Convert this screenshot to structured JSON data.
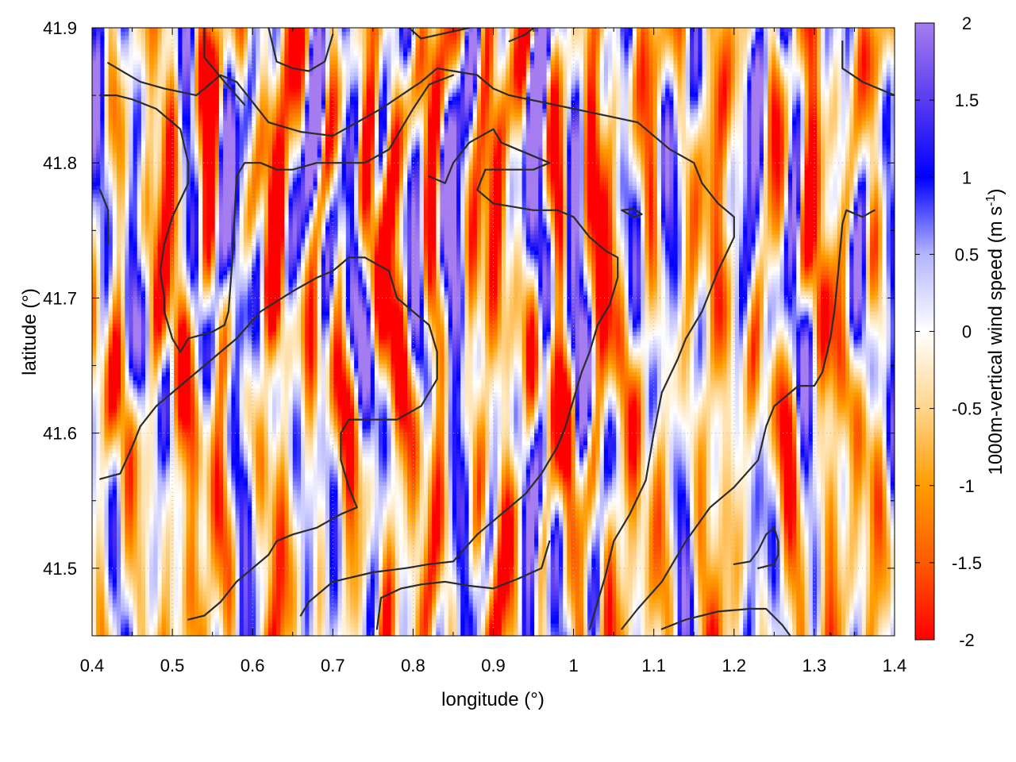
{
  "chart_data": {
    "type": "heatmap",
    "title": "",
    "xlabel": "longitude (°)",
    "ylabel": "latitude (°)",
    "colorbar_label": {
      "main": "1000m-vertical wind speed (m s",
      "sup": "-1",
      "close": ")"
    },
    "xlim": [
      0.4,
      1.4
    ],
    "ylim": [
      41.45,
      41.9
    ],
    "x_ticks": [
      0.4,
      0.5,
      0.6,
      0.7,
      0.8,
      0.9,
      1.0,
      1.1,
      1.2,
      1.3,
      1.4
    ],
    "x_tick_labels": [
      "0.4",
      "0.5",
      "0.6",
      "0.7",
      "0.8",
      "0.9",
      "1",
      "1.1",
      "1.2",
      "1.3",
      "1.4"
    ],
    "y_ticks": [
      41.5,
      41.6,
      41.7,
      41.8,
      41.9
    ],
    "y_tick_labels": [
      "41.5",
      "41.6",
      "41.7",
      "41.8",
      "41.9"
    ],
    "colorbar_range": [
      -2,
      2
    ],
    "colorbar_ticks": [
      2,
      1.5,
      1,
      0.5,
      0,
      -0.5,
      -1,
      -1.5,
      -2
    ],
    "colorbar_tick_labels": [
      "2",
      "1.5",
      "1",
      "0.5",
      "0",
      "-0.5",
      "-1",
      "-1.5",
      "-2"
    ],
    "colormap": [
      {
        "value": -2.0,
        "color": "#ff0000"
      },
      {
        "value": -1.5,
        "color": "#ff5a00"
      },
      {
        "value": -1.0,
        "color": "#ff9c00"
      },
      {
        "value": -0.5,
        "color": "#ffd58c"
      },
      {
        "value": 0.0,
        "color": "#ffffff"
      },
      {
        "value": 0.5,
        "color": "#b4b4ff"
      },
      {
        "value": 1.0,
        "color": "#0000ff"
      },
      {
        "value": 1.5,
        "color": "#5a3cf0"
      },
      {
        "value": 2.0,
        "color": "#a57df0"
      }
    ],
    "grid": true,
    "contour_color": "#2b2b2b",
    "contours": [
      [
        [
          0.42,
          41.874
        ],
        [
          0.46,
          41.86
        ],
        [
          0.49,
          41.855
        ],
        [
          0.53,
          41.85
        ],
        [
          0.56,
          41.865
        ],
        [
          0.58,
          41.86
        ],
        [
          0.6,
          41.845
        ],
        [
          0.62,
          41.83
        ],
        [
          0.66,
          41.823
        ],
        [
          0.7,
          41.82
        ],
        [
          0.73,
          41.83
        ],
        [
          0.76,
          41.84
        ],
        [
          0.78,
          41.848
        ],
        [
          0.81,
          41.86
        ],
        [
          0.83,
          41.87
        ],
        [
          0.85,
          41.868
        ],
        [
          0.88,
          41.865
        ],
        [
          0.9,
          41.855
        ],
        [
          0.92,
          41.85
        ],
        [
          0.96,
          41.845
        ],
        [
          1.0,
          41.84
        ],
        [
          1.04,
          41.835
        ],
        [
          1.08,
          41.83
        ],
        [
          1.12,
          41.81
        ],
        [
          1.15,
          41.8
        ],
        [
          1.16,
          41.785
        ],
        [
          1.18,
          41.77
        ],
        [
          1.2,
          41.76
        ],
        [
          1.2,
          41.745
        ],
        [
          1.18,
          41.72
        ],
        [
          1.16,
          41.69
        ],
        [
          1.14,
          41.67
        ],
        [
          1.13,
          41.655
        ],
        [
          1.11,
          41.63
        ],
        [
          1.1,
          41.6
        ],
        [
          1.09,
          41.565
        ],
        [
          1.07,
          41.54
        ],
        [
          1.05,
          41.52
        ],
        [
          1.04,
          41.495
        ],
        [
          1.03,
          41.475
        ],
        [
          1.02,
          41.455
        ]
      ],
      [
        [
          0.41,
          41.85
        ],
        [
          0.43,
          41.85
        ],
        [
          0.45,
          41.847
        ],
        [
          0.48,
          41.84
        ],
        [
          0.51,
          41.825
        ],
        [
          0.52,
          41.8
        ],
        [
          0.52,
          41.785
        ],
        [
          0.5,
          41.76
        ],
        [
          0.49,
          41.74
        ],
        [
          0.485,
          41.72
        ],
        [
          0.49,
          41.7
        ],
        [
          0.49,
          41.69
        ],
        [
          0.5,
          41.67
        ],
        [
          0.51,
          41.66
        ],
        [
          0.52,
          41.67
        ],
        [
          0.55,
          41.675
        ],
        [
          0.565,
          41.68
        ],
        [
          0.57,
          41.69
        ],
        [
          0.575,
          41.73
        ],
        [
          0.58,
          41.79
        ],
        [
          0.59,
          41.8
        ],
        [
          0.61,
          41.8
        ],
        [
          0.63,
          41.795
        ],
        [
          0.65,
          41.795
        ],
        [
          0.68,
          41.8
        ],
        [
          0.71,
          41.8
        ],
        [
          0.74,
          41.8
        ],
        [
          0.77,
          41.81
        ],
        [
          0.8,
          41.84
        ],
        [
          0.82,
          41.858
        ],
        [
          0.85,
          41.865
        ]
      ],
      [
        [
          0.54,
          41.9
        ],
        [
          0.54,
          41.878
        ],
        [
          0.565,
          41.86
        ],
        [
          0.59,
          41.843
        ]
      ],
      [
        [
          0.62,
          41.9
        ],
        [
          0.63,
          41.875
        ],
        [
          0.65,
          41.87
        ],
        [
          0.67,
          41.868
        ],
        [
          0.69,
          41.875
        ],
        [
          0.7,
          41.895
        ]
      ],
      [
        [
          0.795,
          41.9
        ],
        [
          0.81,
          41.892
        ],
        [
          0.84,
          41.896
        ],
        [
          0.87,
          41.9
        ]
      ],
      [
        [
          0.92,
          41.89
        ],
        [
          0.94,
          41.895
        ],
        [
          0.96,
          41.905
        ]
      ],
      [
        [
          0.82,
          41.79
        ],
        [
          0.84,
          41.785
        ],
        [
          0.85,
          41.8
        ],
        [
          0.87,
          41.815
        ],
        [
          0.9,
          41.825
        ],
        [
          0.91,
          41.815
        ],
        [
          0.93,
          41.81
        ],
        [
          0.95,
          41.805
        ],
        [
          0.97,
          41.8
        ],
        [
          0.95,
          41.795
        ],
        [
          0.92,
          41.795
        ],
        [
          0.89,
          41.795
        ],
        [
          0.88,
          41.78
        ],
        [
          0.9,
          41.77
        ],
        [
          0.95,
          41.765
        ],
        [
          0.98,
          41.765
        ],
        [
          1.0,
          41.76
        ],
        [
          1.02,
          41.745
        ],
        [
          1.04,
          41.735
        ],
        [
          1.055,
          41.73
        ],
        [
          1.055,
          41.715
        ],
        [
          1.045,
          41.695
        ],
        [
          1.03,
          41.68
        ],
        [
          1.02,
          41.66
        ],
        [
          1.01,
          41.645
        ],
        [
          1.0,
          41.625
        ],
        [
          0.99,
          41.605
        ],
        [
          0.98,
          41.59
        ],
        [
          0.96,
          41.57
        ],
        [
          0.94,
          41.555
        ],
        [
          0.92,
          41.545
        ],
        [
          0.9,
          41.535
        ],
        [
          0.88,
          41.525
        ],
        [
          0.85,
          41.505
        ],
        [
          0.82,
          41.503
        ],
        [
          0.79,
          41.5
        ],
        [
          0.75,
          41.497
        ],
        [
          0.7,
          41.49
        ],
        [
          0.67,
          41.475
        ],
        [
          0.66,
          41.465
        ]
      ],
      [
        [
          0.74,
          41.73
        ],
        [
          0.77,
          41.72
        ],
        [
          0.78,
          41.7
        ],
        [
          0.8,
          41.69
        ],
        [
          0.82,
          41.68
        ],
        [
          0.83,
          41.66
        ],
        [
          0.83,
          41.64
        ],
        [
          0.81,
          41.62
        ],
        [
          0.78,
          41.61
        ],
        [
          0.75,
          41.61
        ],
        [
          0.72,
          41.61
        ],
        [
          0.71,
          41.6
        ],
        [
          0.71,
          41.58
        ],
        [
          0.72,
          41.56
        ],
        [
          0.73,
          41.545
        ],
        [
          0.71,
          41.54
        ],
        [
          0.68,
          41.53
        ],
        [
          0.65,
          41.525
        ],
        [
          0.63,
          41.52
        ],
        [
          0.62,
          41.51
        ],
        [
          0.6,
          41.5
        ],
        [
          0.58,
          41.49
        ],
        [
          0.56,
          41.475
        ],
        [
          0.54,
          41.465
        ],
        [
          0.52,
          41.462
        ]
      ],
      [
        [
          0.41,
          41.566
        ],
        [
          0.435,
          41.57
        ],
        [
          0.45,
          41.59
        ],
        [
          0.46,
          41.605
        ],
        [
          0.48,
          41.62
        ],
        [
          0.5,
          41.63
        ],
        [
          0.52,
          41.64
        ],
        [
          0.55,
          41.655
        ],
        [
          0.58,
          41.67
        ],
        [
          0.61,
          41.69
        ],
        [
          0.65,
          41.705
        ],
        [
          0.68,
          41.715
        ],
        [
          0.7,
          41.72
        ],
        [
          0.72,
          41.73
        ],
        [
          0.74,
          41.73
        ]
      ],
      [
        [
          1.0,
          41.9
        ],
        [
          1.02,
          41.903
        ],
        [
          1.04,
          41.9
        ]
      ],
      [
        [
          1.335,
          41.89
        ],
        [
          1.335,
          41.87
        ],
        [
          1.36,
          41.86
        ],
        [
          1.38,
          41.855
        ],
        [
          1.4,
          41.85
        ]
      ],
      [
        [
          1.375,
          41.765
        ],
        [
          1.36,
          41.76
        ],
        [
          1.34,
          41.765
        ],
        [
          1.335,
          41.755
        ],
        [
          1.33,
          41.72
        ],
        [
          1.325,
          41.69
        ],
        [
          1.32,
          41.67
        ],
        [
          1.31,
          41.645
        ],
        [
          1.3,
          41.635
        ],
        [
          1.28,
          41.635
        ],
        [
          1.25,
          41.62
        ],
        [
          1.24,
          41.605
        ],
        [
          1.23,
          41.58
        ],
        [
          1.2,
          41.56
        ],
        [
          1.17,
          41.545
        ],
        [
          1.14,
          41.52
        ],
        [
          1.11,
          41.49
        ],
        [
          1.08,
          41.47
        ],
        [
          1.06,
          41.455
        ]
      ],
      [
        [
          1.2,
          41.503
        ],
        [
          1.22,
          41.505
        ],
        [
          1.23,
          41.513
        ],
        [
          1.24,
          41.525
        ],
        [
          1.25,
          41.53
        ],
        [
          1.255,
          41.52
        ],
        [
          1.255,
          41.51
        ],
        [
          1.25,
          41.503
        ],
        [
          1.23,
          41.5
        ]
      ],
      [
        [
          1.11,
          41.455
        ],
        [
          1.14,
          41.462
        ],
        [
          1.18,
          41.468
        ],
        [
          1.22,
          41.47
        ],
        [
          1.24,
          41.47
        ],
        [
          1.26,
          41.458
        ],
        [
          1.27,
          41.45
        ]
      ],
      [
        [
          0.755,
          41.455
        ],
        [
          0.76,
          41.478
        ],
        [
          0.785,
          41.485
        ],
        [
          0.81,
          41.488
        ],
        [
          0.84,
          41.49
        ],
        [
          0.87,
          41.487
        ],
        [
          0.9,
          41.485
        ],
        [
          0.93,
          41.492
        ],
        [
          0.96,
          41.5
        ],
        [
          0.97,
          41.52
        ]
      ],
      [
        [
          1.06,
          41.765
        ],
        [
          1.075,
          41.76
        ],
        [
          1.085,
          41.762
        ],
        [
          1.075,
          41.766
        ],
        [
          1.06,
          41.765
        ]
      ],
      [
        [
          0.41,
          41.78
        ],
        [
          0.42,
          41.765
        ],
        [
          0.42,
          41.74
        ]
      ],
      [
        [
          1.32,
          41.452
        ],
        [
          1.325,
          41.44
        ]
      ]
    ]
  }
}
